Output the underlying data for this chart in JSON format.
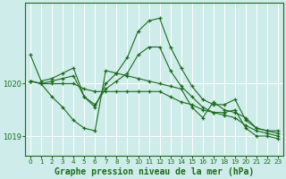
{
  "xlabel": "Graphe pression niveau de la mer (hPa)",
  "ylabel": "",
  "bg_color": "#ceecea",
  "grid_color": "#ffffff",
  "line_color": "#1a6b1a",
  "marker": "+",
  "xlim": [
    -0.5,
    23.5
  ],
  "ylim": [
    1018.62,
    1021.55
  ],
  "yticks": [
    1019,
    1020
  ],
  "xticks": [
    0,
    1,
    2,
    3,
    4,
    5,
    6,
    7,
    8,
    9,
    10,
    11,
    12,
    13,
    14,
    15,
    16,
    17,
    18,
    19,
    20,
    21,
    22,
    23
  ],
  "xtick_fontsize": 5.2,
  "ytick_fontsize": 6.0,
  "xlabel_fontsize": 7.0,
  "lines": [
    {
      "x": [
        0,
        1,
        2,
        3,
        4,
        5,
        6,
        7,
        8,
        9,
        10,
        11,
        12,
        13,
        14,
        15,
        16,
        17,
        18,
        19,
        20,
        21,
        22,
        23
      ],
      "y": [
        1020.55,
        1020.05,
        1020.1,
        1020.2,
        1020.3,
        1019.75,
        1019.55,
        1020.0,
        1020.2,
        1020.5,
        1021.0,
        1021.2,
        1021.25,
        1020.7,
        1020.3,
        1019.95,
        1019.7,
        1019.6,
        1019.6,
        1019.7,
        1019.3,
        1019.15,
        1019.1,
        1019.1
      ]
    },
    {
      "x": [
        0,
        1,
        2,
        3,
        4,
        5,
        6,
        7,
        8,
        9,
        10,
        11,
        12,
        13,
        14,
        15,
        16,
        17,
        18,
        19,
        20,
        21,
        22,
        23
      ],
      "y": [
        1020.05,
        1020.0,
        1020.05,
        1020.1,
        1020.15,
        1019.75,
        1019.6,
        1019.9,
        1020.05,
        1020.2,
        1020.55,
        1020.7,
        1020.7,
        1020.25,
        1019.95,
        1019.75,
        1019.55,
        1019.45,
        1019.45,
        1019.5,
        1019.15,
        1019.0,
        1019.0,
        1018.95
      ]
    },
    {
      "x": [
        0,
        1,
        2,
        3,
        4,
        5,
        6,
        7,
        8,
        9,
        10,
        11,
        12,
        13,
        14,
        15,
        16,
        17,
        18,
        19,
        20,
        21,
        22,
        23
      ],
      "y": [
        1020.05,
        1020.0,
        1020.0,
        1020.0,
        1020.0,
        1019.9,
        1019.85,
        1019.85,
        1019.85,
        1019.85,
        1019.85,
        1019.85,
        1019.85,
        1019.75,
        1019.65,
        1019.6,
        1019.5,
        1019.45,
        1019.4,
        1019.35,
        1019.2,
        1019.1,
        1019.05,
        1019.0
      ]
    },
    {
      "x": [
        0,
        1,
        2,
        3,
        4,
        5,
        6,
        7,
        8,
        9,
        10,
        11,
        12,
        13,
        14,
        15,
        16,
        17,
        18,
        19,
        20,
        21,
        22,
        23
      ],
      "y": [
        1020.05,
        1020.0,
        1019.75,
        1019.55,
        1019.3,
        1019.15,
        1019.1,
        1020.25,
        1020.2,
        1020.15,
        1020.1,
        1020.05,
        1020.0,
        1019.95,
        1019.9,
        1019.55,
        1019.35,
        1019.65,
        1019.5,
        1019.45,
        1019.35,
        1019.15,
        1019.1,
        1019.05
      ]
    }
  ]
}
